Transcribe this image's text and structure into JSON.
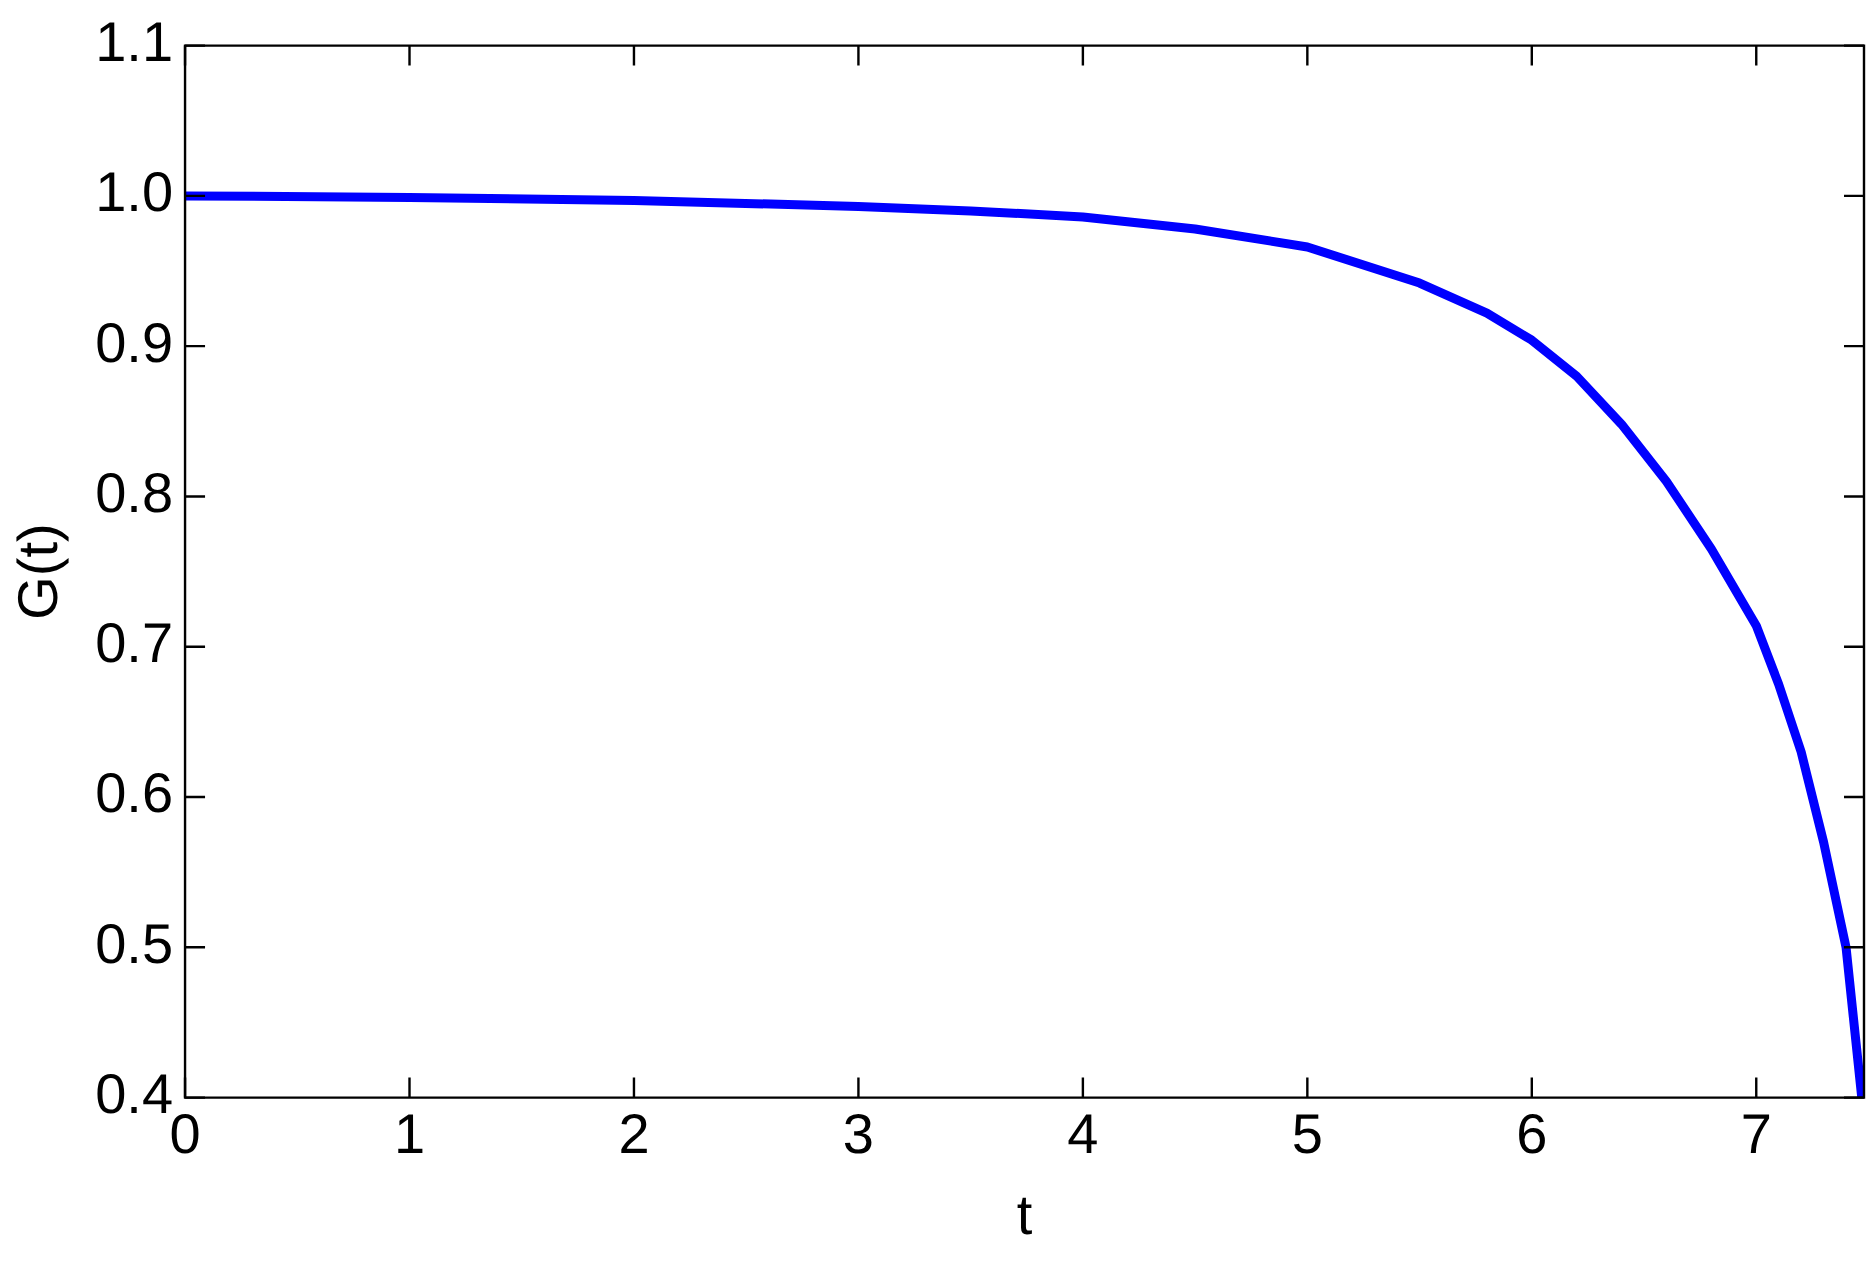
{
  "chart_data": {
    "type": "line",
    "xlabel": "t",
    "ylabel": "G(t)",
    "xlim": [
      0,
      7.48
    ],
    "ylim": [
      0.4,
      1.1
    ],
    "xticks": [
      0,
      1,
      2,
      3,
      4,
      5,
      6,
      7
    ],
    "yticks": [
      0.4,
      0.5,
      0.6,
      0.7,
      0.8,
      0.9,
      {
        "value": 1,
        "label": "1.0"
      },
      1.1
    ],
    "grid": false,
    "legend": false,
    "marker": "none",
    "line_style": "solid",
    "series": [
      {
        "color": "#0000ff",
        "x": [
          0,
          1,
          2,
          3,
          3.5,
          4,
          4.5,
          5,
          5.5,
          5.8,
          6,
          6.2,
          6.4,
          6.6,
          6.8,
          7,
          7.1,
          7.2,
          7.3,
          7.4,
          7.47
        ],
        "values": [
          1.0,
          0.999,
          0.997,
          0.993,
          0.99,
          0.986,
          0.978,
          0.966,
          0.942,
          0.922,
          0.904,
          0.88,
          0.848,
          0.81,
          0.765,
          0.714,
          0.675,
          0.63,
          0.57,
          0.5,
          0.4
        ]
      }
    ]
  }
}
